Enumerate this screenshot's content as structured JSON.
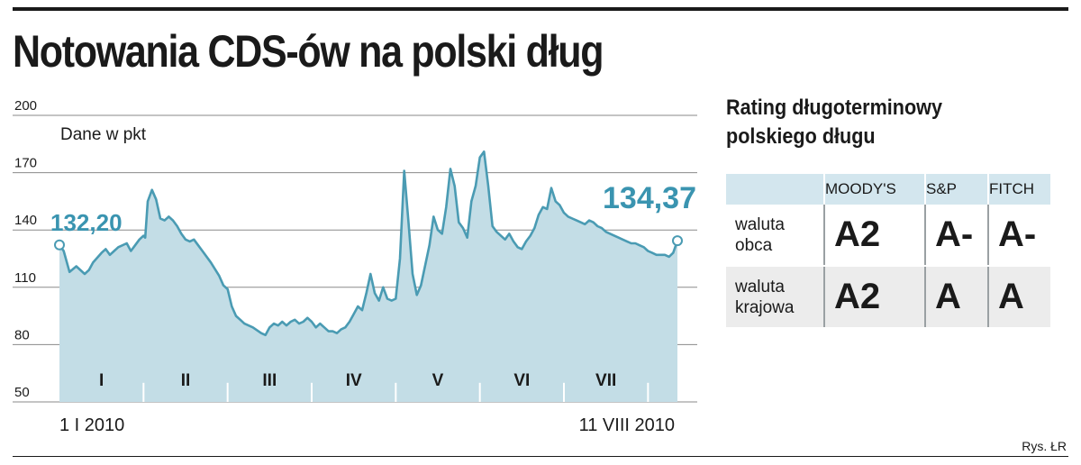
{
  "title": "Notowania CDS-ów na polski dług",
  "credit": "Rys. ŁR",
  "chart_data": {
    "type": "area",
    "unit_label": "Dane w pkt",
    "y_ticks": [
      200,
      170,
      140,
      110,
      80,
      50
    ],
    "ylim": [
      50,
      200
    ],
    "grid": true,
    "months": [
      "I",
      "II",
      "III",
      "IV",
      "V",
      "VI",
      "VII"
    ],
    "month_boundaries": [
      1,
      2,
      3,
      4,
      5,
      6,
      7
    ],
    "x_start_label": "1 I 2010",
    "x_end_label": "11 VIII 2010",
    "start_value_label": "132,20",
    "end_value_label": "134,37",
    "fill_color": "#c3dde6",
    "line_color": "#4a9bb3",
    "label_color": "#3a94b0",
    "x": [
      0,
      0.05,
      0.12,
      0.2,
      0.3,
      0.35,
      0.4,
      0.5,
      0.55,
      0.6,
      0.7,
      0.8,
      0.85,
      0.9,
      0.95,
      1.0,
      1.02,
      1.05,
      1.1,
      1.15,
      1.2,
      1.25,
      1.3,
      1.35,
      1.4,
      1.45,
      1.5,
      1.55,
      1.6,
      1.65,
      1.7,
      1.8,
      1.9,
      1.95,
      2.0,
      2.05,
      2.1,
      2.15,
      2.2,
      2.3,
      2.4,
      2.45,
      2.5,
      2.55,
      2.6,
      2.65,
      2.7,
      2.75,
      2.8,
      2.85,
      2.9,
      2.95,
      3.0,
      3.05,
      3.1,
      3.15,
      3.2,
      3.25,
      3.3,
      3.35,
      3.4,
      3.45,
      3.5,
      3.55,
      3.6,
      3.65,
      3.7,
      3.75,
      3.8,
      3.85,
      3.9,
      3.95,
      4.0,
      4.05,
      4.1,
      4.15,
      4.2,
      4.25,
      4.3,
      4.4,
      4.45,
      4.5,
      4.55,
      4.6,
      4.65,
      4.7,
      4.75,
      4.8,
      4.85,
      4.9,
      4.95,
      5.0,
      5.05,
      5.1,
      5.15,
      5.2,
      5.25,
      5.3,
      5.35,
      5.4,
      5.45,
      5.5,
      5.55,
      5.6,
      5.65,
      5.7,
      5.75,
      5.8,
      5.85,
      5.9,
      5.95,
      6.0,
      6.05,
      6.1,
      6.15,
      6.2,
      6.25,
      6.3,
      6.35,
      6.4,
      6.45,
      6.5,
      6.55,
      6.6,
      6.65,
      6.7,
      6.75,
      6.8,
      6.85,
      6.9,
      6.95,
      7.0,
      7.05,
      7.1,
      7.15,
      7.2,
      7.25,
      7.3,
      7.35
    ],
    "values": [
      132.2,
      129,
      118,
      121,
      117,
      119,
      123,
      128,
      130,
      127,
      131,
      133,
      129,
      132,
      135,
      137,
      136,
      155,
      161,
      156,
      146,
      145,
      147,
      145,
      142,
      138,
      135,
      134,
      135,
      132,
      129,
      123,
      116,
      111,
      109,
      100,
      95,
      93,
      91,
      89,
      86,
      85,
      89,
      91,
      90,
      92,
      90,
      92,
      93,
      91,
      92,
      94,
      92,
      89,
      91,
      89,
      87,
      87,
      86,
      88,
      89,
      92,
      96,
      100,
      98,
      107,
      117,
      107,
      103,
      110,
      104,
      103,
      104,
      125,
      171,
      145,
      117,
      106,
      111,
      132,
      147,
      140,
      138,
      152,
      172,
      163,
      144,
      141,
      136,
      155,
      163,
      178,
      181,
      163,
      142,
      139,
      137,
      135,
      138,
      134,
      131,
      130,
      134,
      137,
      141,
      148,
      152,
      151,
      162,
      155,
      153,
      149,
      147,
      146,
      145,
      144,
      143,
      145,
      144,
      142,
      141,
      139,
      138,
      137,
      136,
      135,
      134,
      133,
      133,
      132,
      131,
      129,
      128,
      127,
      127,
      127,
      126,
      128,
      134.37
    ]
  },
  "rating": {
    "title_line1": "Rating długoterminowy",
    "title_line2": "polskiego długu",
    "agencies": [
      "MOODY'S",
      "S&P",
      "FITCH"
    ],
    "rows": [
      {
        "label_line1": "waluta",
        "label_line2": "obca",
        "grades": [
          "A2",
          "A-",
          "A-"
        ]
      },
      {
        "label_line1": "waluta",
        "label_line2": "krajowa",
        "grades": [
          "A2",
          "A",
          "A"
        ]
      }
    ]
  }
}
